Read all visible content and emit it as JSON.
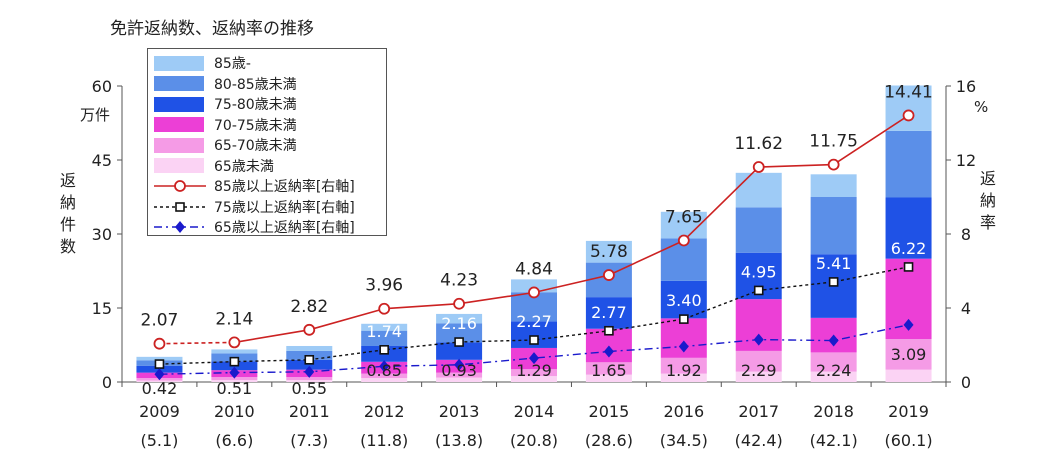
{
  "chart_data": {
    "type": "bar",
    "title": "免許返納数、返納率の推移",
    "ylabel_left": "返納件数",
    "ylabel_left_unit": "万件",
    "ylabel_right": "返納率",
    "ylabel_right_unit": "%",
    "ylim_left": [
      0,
      60
    ],
    "yticks_left": [
      "0",
      "15",
      "30",
      "45",
      "60"
    ],
    "ylim_right": [
      0,
      16
    ],
    "yticks_right": [
      "0",
      "4",
      "8",
      "12",
      "16"
    ],
    "categories": [
      "2009",
      "2010",
      "2011",
      "2012",
      "2013",
      "2014",
      "2015",
      "2016",
      "2017",
      "2018",
      "2019"
    ],
    "totals_labels": [
      "(5.1)",
      "(6.6)",
      "(7.3)",
      "(11.8)",
      "(13.8)",
      "(20.8)",
      "(28.6)",
      "(34.5)",
      "(42.4)",
      "(42.1)",
      "(60.1)"
    ],
    "series": [
      {
        "name": "65歳未満",
        "color": "#fbd3f4",
        "values": [
          0.3,
          0.4,
          0.4,
          0.8,
          0.9,
          1.2,
          1.5,
          1.7,
          2.1,
          2.1,
          2.5
        ]
      },
      {
        "name": "65-70歳未満",
        "color": "#f59be6",
        "values": [
          0.5,
          0.6,
          0.6,
          0.9,
          1.0,
          1.4,
          2.5,
          3.2,
          4.2,
          3.9,
          6.2
        ]
      },
      {
        "name": "70-75歳未満",
        "color": "#ec3fd6",
        "values": [
          1.1,
          1.4,
          1.5,
          2.4,
          2.6,
          4.3,
          6.8,
          8.0,
          10.5,
          7.0,
          16.3
        ]
      },
      {
        "name": "75-80歳未満",
        "color": "#1f52e6",
        "values": [
          1.4,
          1.8,
          2.0,
          3.2,
          3.5,
          5.4,
          6.4,
          7.6,
          9.4,
          12.9,
          12.4
        ]
      },
      {
        "name": "80-85歳未満",
        "color": "#5b8fe8",
        "values": [
          1.1,
          1.6,
          1.8,
          3.1,
          3.9,
          5.9,
          7.0,
          8.6,
          9.2,
          11.6,
          13.5
        ]
      },
      {
        "name": "85歳-",
        "color": "#9ecbf6",
        "values": [
          0.7,
          0.8,
          1.0,
          1.4,
          1.9,
          2.6,
          4.4,
          5.4,
          7.0,
          4.6,
          9.2
        ]
      }
    ],
    "rate_series": [
      {
        "name": "85歳以上返納率[右軸]",
        "color": "#cc2222",
        "style": "solid-circle",
        "values": [
          2.07,
          2.14,
          2.82,
          3.96,
          4.23,
          4.84,
          5.78,
          7.65,
          11.62,
          11.75,
          14.41
        ],
        "labels": [
          "2.07",
          "2.14",
          "2.82",
          "3.96",
          "4.23",
          "4.84",
          "5.78",
          "7.65",
          "11.62",
          "11.75",
          "14.41"
        ]
      },
      {
        "name": "75歳以上返納率[右軸]",
        "color": "#111111",
        "style": "dotted-square",
        "values": [
          0.97,
          1.1,
          1.2,
          1.74,
          2.16,
          2.27,
          2.77,
          3.4,
          4.95,
          5.41,
          6.22
        ],
        "labels": [
          "",
          "",
          "",
          "1.74",
          "2.16",
          "2.27",
          "2.77",
          "3.40",
          "4.95",
          "5.41",
          "6.22"
        ]
      },
      {
        "name": "65歳以上返納率[右軸]",
        "color": "#1a1acc",
        "style": "dashdot-diamond",
        "values": [
          0.42,
          0.51,
          0.55,
          0.85,
          0.93,
          1.29,
          1.65,
          1.92,
          2.29,
          2.24,
          3.09
        ],
        "labels": [
          "0.42",
          "0.51",
          "0.55",
          "0.85",
          "0.93",
          "1.29",
          "1.65",
          "1.92",
          "2.29",
          "2.24",
          "3.09"
        ]
      }
    ],
    "legend_placement": "top-left",
    "grid": false
  }
}
